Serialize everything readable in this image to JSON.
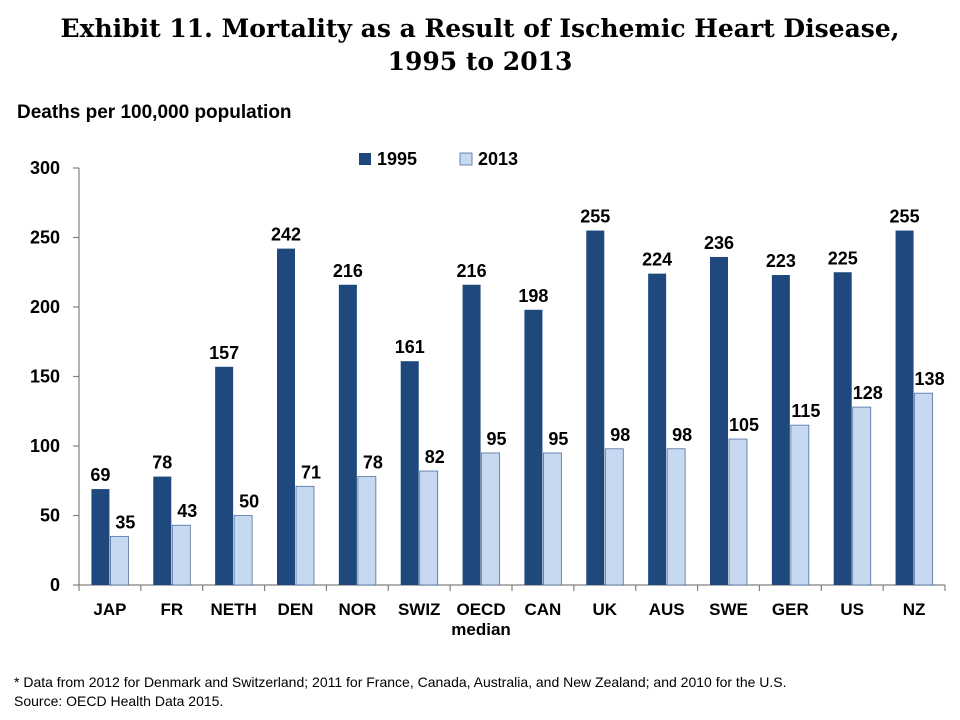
{
  "chart_data": {
    "type": "bar",
    "title_line1": "Exhibit 11. Mortality as a Result of Ischemic Heart Disease,",
    "title_line2": "1995 to 2013",
    "ylabel": "Deaths per 100,000 population",
    "xlabel": "",
    "ylim": [
      0,
      300
    ],
    "yticks": [
      0,
      50,
      100,
      150,
      200,
      250,
      300
    ],
    "grid": false,
    "legend_position": "top-center",
    "categories": [
      [
        "JAP"
      ],
      [
        "FR"
      ],
      [
        "NETH"
      ],
      [
        "DEN"
      ],
      [
        "NOR"
      ],
      [
        "SWIZ"
      ],
      [
        "OECD",
        "median"
      ],
      [
        "CAN"
      ],
      [
        "UK"
      ],
      [
        "AUS"
      ],
      [
        "SWE"
      ],
      [
        "GER"
      ],
      [
        "US"
      ],
      [
        "NZ"
      ]
    ],
    "series": [
      {
        "name": "1995",
        "color": "#1f497d",
        "values": [
          69,
          78,
          157,
          242,
          216,
          161,
          216,
          198,
          255,
          224,
          236,
          223,
          225,
          255
        ]
      },
      {
        "name": "2013",
        "color": "#c6d9f1",
        "values": [
          35,
          43,
          50,
          71,
          78,
          82,
          95,
          95,
          98,
          98,
          105,
          115,
          128,
          138
        ]
      }
    ]
  },
  "footnote": {
    "line1": "* Data from 2012 for Denmark and Switzerland; 2011 for France, Canada, Australia, and New Zealand; and 2010 for the U.S.",
    "line2": "Source: OECD Health Data 2015."
  }
}
